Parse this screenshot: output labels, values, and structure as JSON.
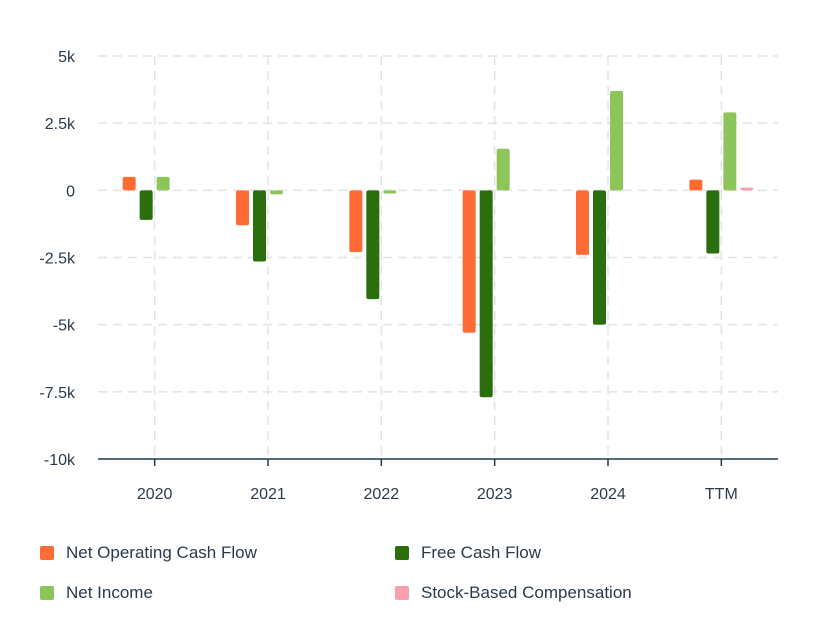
{
  "chart_data": {
    "type": "bar",
    "title": "",
    "xlabel": "",
    "ylabel": "",
    "categories": [
      "2020",
      "2021",
      "2022",
      "2023",
      "2024",
      "TTM"
    ],
    "ylim": [
      -10000,
      5000
    ],
    "yticks": [
      5000,
      2500,
      0,
      -2500,
      -5000,
      -7500,
      -10000
    ],
    "ytick_labels": [
      "5k",
      "2.5k",
      "0",
      "-2.5k",
      "-5k",
      "-7.5k",
      "-10k"
    ],
    "grid": true,
    "legend_position": "bottom",
    "series": [
      {
        "name": "Net Operating Cash Flow",
        "color": "#ff6b35",
        "values": [
          500,
          -1300,
          -2300,
          -5300,
          -2400,
          400
        ]
      },
      {
        "name": "Free Cash Flow",
        "color": "#2a6e0e",
        "values": [
          -1100,
          -2650,
          -4050,
          -7700,
          -5000,
          -2350
        ]
      },
      {
        "name": "Net Income",
        "color": "#8cc65a",
        "values": [
          500,
          -150,
          -120,
          1550,
          3700,
          2900
        ]
      },
      {
        "name": "Stock-Based Compensation",
        "color": "#f8a0ae",
        "values": [
          0,
          0,
          0,
          0,
          0,
          100
        ]
      }
    ]
  }
}
